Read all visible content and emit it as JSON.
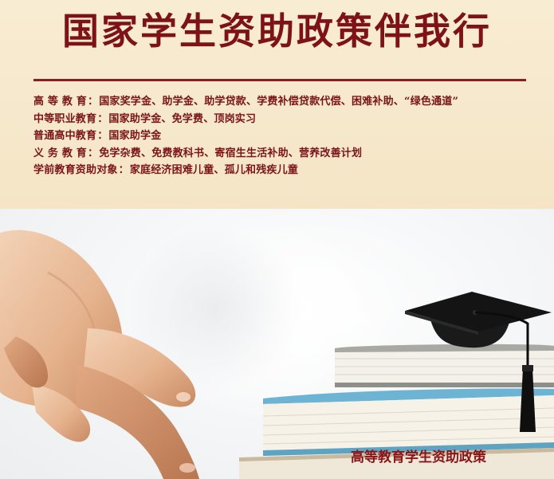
{
  "banner": {
    "title": "国家学生资助政策伴我行",
    "policies": [
      {
        "label": "高 等 教 育",
        "items": "国家奖学金、助学金、助学贷款、学费补偿贷款代偿、困难补助、“绿色通道”"
      },
      {
        "label": "中等职业教育",
        "items": "国家助学金、免学费、顶岗实习"
      },
      {
        "label": "普通高中教育",
        "items": "国家助学金"
      },
      {
        "label": "义 务 教 育",
        "items": "免学杂费、免费教科书、寄宿生生活补助、营养改善计划"
      },
      {
        "label": "学前教育资助对象",
        "items": "家庭经济困难儿童、孤儿和残疾儿童"
      }
    ],
    "separator": "："
  },
  "photo": {
    "caption": "高等教育学生资助政策",
    "icons": [
      "hand-icon",
      "book-stack-icon",
      "graduation-cap-icon"
    ],
    "colors": {
      "title": "#7d1219",
      "text": "#7a1418",
      "banner_bg": "#f6e9cf",
      "book_cover": "#6db4d4",
      "cap": "#111111"
    }
  }
}
